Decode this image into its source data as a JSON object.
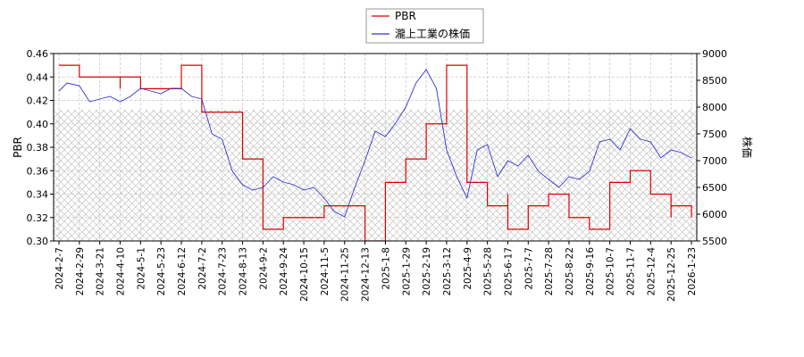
{
  "chart_data": {
    "type": "line",
    "xlabel": "",
    "ylabel_left": "PBR",
    "ylabel_right": "株価",
    "ylim_left": [
      0.3,
      0.46
    ],
    "ylim_right": [
      5500,
      9000
    ],
    "x_ticks": [
      "2024-2-7",
      "2024-2-29",
      "2024-3-21",
      "2024-4-10",
      "2024-5-1",
      "2024-5-23",
      "2024-6-12",
      "2024-7-2",
      "2024-7-23",
      "2024-8-13",
      "2024-9-2",
      "2024-9-24",
      "2024-10-15",
      "2024-11-5",
      "2024-11-25",
      "2024-12-13",
      "2025-1-8",
      "2025-1-29",
      "2025-2-19",
      "2025-3-12",
      "2025-4-9",
      "2025-5-28",
      "2025-6-17",
      "2025-7-7",
      "2025-7-28",
      "2025-8-22",
      "2025-9-16",
      "2025-10-7",
      "2025-11-7",
      "2025-12-4",
      "2025-12-25",
      "2026-1-23"
    ],
    "y_ticks_left": [
      "0.30",
      "0.32",
      "0.34",
      "0.36",
      "0.38",
      "0.40",
      "0.42",
      "0.44",
      "0.46"
    ],
    "y_ticks_right": [
      "5500",
      "6000",
      "6500",
      "7000",
      "7500",
      "8000",
      "8500",
      "9000"
    ],
    "hatch_range_right": [
      5500,
      7950
    ],
    "grid": true,
    "legend_position": "top-center",
    "series": [
      {
        "name": "PBR",
        "axis": "left",
        "color": "#dd0000",
        "x": [
          0,
          1,
          2,
          3,
          3,
          4,
          5,
          6,
          6,
          7,
          7,
          8,
          9,
          9,
          10,
          10,
          11,
          12,
          13,
          14,
          15,
          15,
          16,
          17,
          18,
          19,
          19,
          20,
          21,
          22,
          22,
          23,
          24,
          25,
          26,
          26,
          27,
          27,
          28,
          28,
          29,
          30,
          30,
          31,
          31
        ],
        "values": [
          0.45,
          0.44,
          0.44,
          0.43,
          0.44,
          0.43,
          0.43,
          0.44,
          0.45,
          0.41,
          0.41,
          0.41,
          0.4,
          0.37,
          0.35,
          0.31,
          0.32,
          0.32,
          0.33,
          0.33,
          0.32,
          0.3,
          0.35,
          0.37,
          0.4,
          0.43,
          0.45,
          0.35,
          0.33,
          0.34,
          0.31,
          0.33,
          0.34,
          0.32,
          0.32,
          0.31,
          0.31,
          0.35,
          0.35,
          0.36,
          0.34,
          0.32,
          0.33,
          0.32,
          0.32
        ]
      },
      {
        "name": "瀧上工業の株価",
        "axis": "right",
        "color": "#3333cc",
        "x": [
          0,
          0.4,
          1,
          1.5,
          2,
          2.5,
          3,
          3.5,
          4,
          4.5,
          5,
          5.5,
          6,
          6.5,
          7,
          7.5,
          8,
          8.5,
          9,
          9.5,
          10,
          10.5,
          11,
          11.5,
          12,
          12.5,
          13,
          13.5,
          14,
          14.5,
          15,
          15.5,
          16,
          16.5,
          17,
          17.5,
          18,
          18.5,
          19,
          19.5,
          20,
          20.5,
          21,
          21.5,
          22,
          22.5,
          23,
          23.5,
          24,
          24.5,
          25,
          25.5,
          26,
          26.5,
          27,
          27.5,
          28,
          28.5,
          29,
          29.5,
          30,
          30.5,
          31
        ],
        "values": [
          8300,
          8450,
          8400,
          8100,
          8150,
          8200,
          8100,
          8200,
          8350,
          8300,
          8250,
          8350,
          8350,
          8200,
          8150,
          7500,
          7400,
          6800,
          6550,
          6450,
          6500,
          6700,
          6600,
          6550,
          6450,
          6500,
          6300,
          6050,
          5950,
          6500,
          7000,
          7550,
          7450,
          7700,
          8000,
          8450,
          8700,
          8350,
          7200,
          6700,
          6300,
          7200,
          7300,
          6700,
          7000,
          6900,
          7100,
          6800,
          6650,
          6500,
          6700,
          6650,
          6800,
          7350,
          7400,
          7200,
          7600,
          7400,
          7350,
          7050,
          7200,
          7150,
          7050
        ]
      }
    ]
  }
}
